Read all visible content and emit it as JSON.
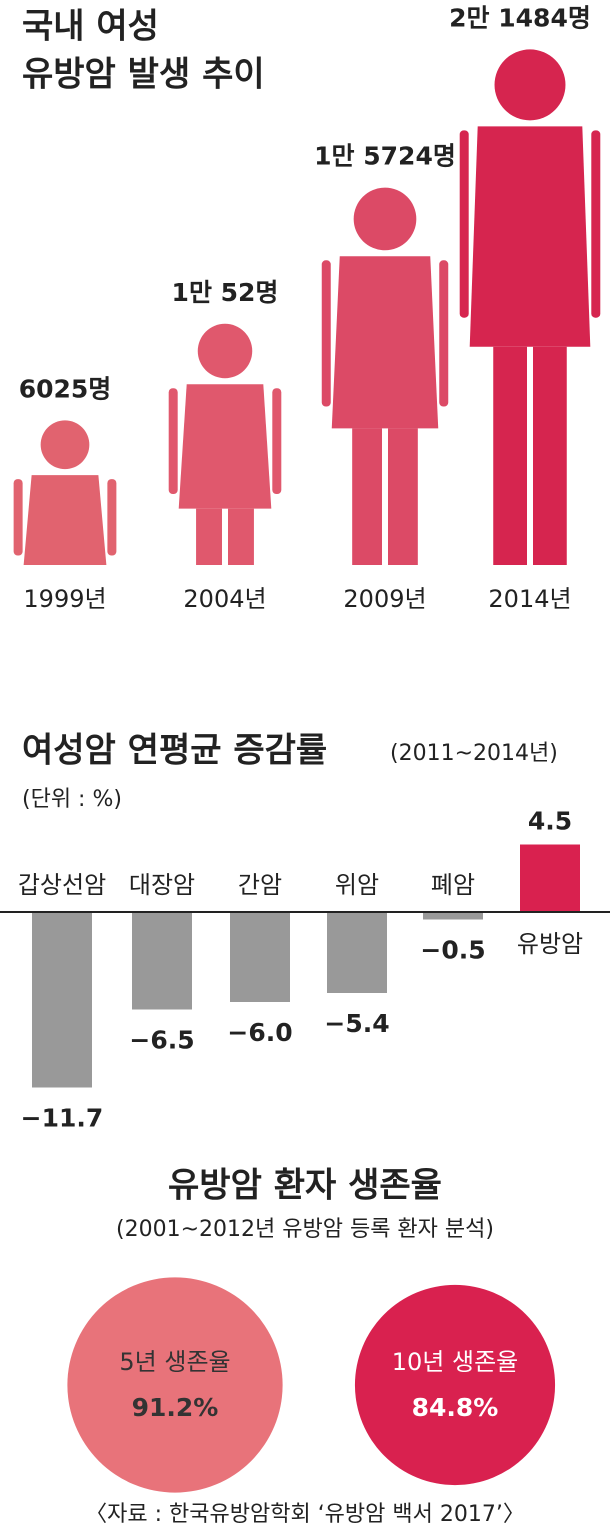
{
  "chart_data": [
    {
      "type": "pictograph",
      "title": [
        "국내 여성",
        "유방암 발생 추이"
      ],
      "categories": [
        "1999년",
        "2004년",
        "2009년",
        "2014년"
      ],
      "values": [
        6025,
        10052,
        15724,
        21484
      ],
      "value_labels": [
        "6025명",
        "1만 52명",
        "1만 5724명",
        "2만 1484명"
      ],
      "colors": [
        "#e1636f",
        "#e0586d",
        "#dc4a66",
        "#d6254f"
      ]
    },
    {
      "type": "bar",
      "title": "여성암 연평균 증감률",
      "subtitle": "(2011~2014년)",
      "unit": "(단위 : %)",
      "categories": [
        "갑상선암",
        "대장암",
        "간암",
        "위암",
        "폐암",
        "유방암"
      ],
      "values": [
        -11.7,
        -6.5,
        -6.0,
        -5.4,
        -0.5,
        4.5
      ],
      "value_labels": [
        "−11.7",
        "−6.5",
        "−6.0",
        "−5.4",
        "−0.5",
        "4.5"
      ],
      "colors": [
        "#999999",
        "#999999",
        "#999999",
        "#999999",
        "#999999",
        "#d9214f"
      ]
    },
    {
      "type": "circle",
      "title": "유방암 환자 생존율",
      "subtitle": "(2001~2012년 유방암 등록 환자 분석)",
      "categories": [
        "5년 생존율",
        "10년 생존율"
      ],
      "values": [
        91.2,
        84.8
      ],
      "value_labels": [
        "91.2%",
        "84.8%"
      ],
      "colors": [
        "#e8737a",
        "#d9214f"
      ]
    }
  ],
  "source": "〈자료 : 한국유방암학회 ‘유방암 백서 2017’〉"
}
